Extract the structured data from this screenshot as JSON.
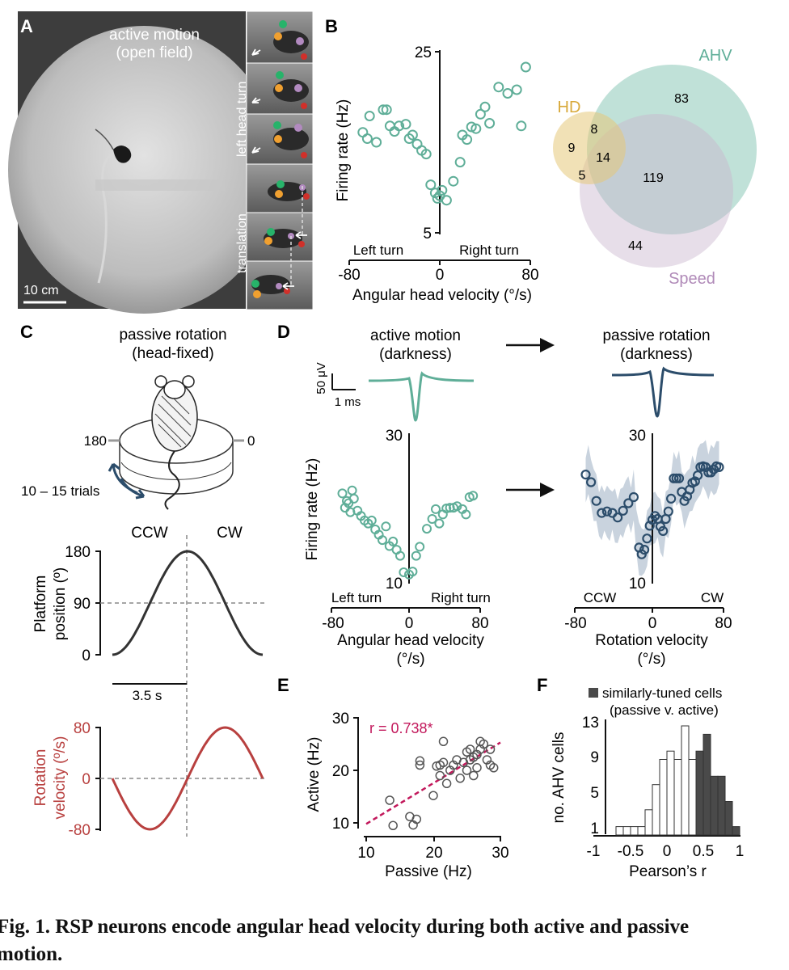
{
  "panels": {
    "A": {
      "letter": "A",
      "title_line1": "active motion",
      "title_line2": "(open field)",
      "scale_label": "10 cm",
      "side_label_1": "left head turn",
      "side_label_2": "translation"
    },
    "B": {
      "letter": "B",
      "ylabel": "Firing rate (Hz)",
      "xlabel": "Angular head velocity (°/s)",
      "left_text": "Left turn",
      "right_text": "Right turn",
      "yticks": [
        "25",
        "5"
      ],
      "xticks": [
        "-80",
        "0",
        "80"
      ],
      "venn": {
        "labels": {
          "ahv": "AHV",
          "hd": "HD",
          "speed": "Speed"
        },
        "counts": {
          "ahv_only": "83",
          "hd_only": "9",
          "hd_ahv": "8",
          "all_three": "14",
          "hd_speed": "5",
          "ahv_speed": "119",
          "speed_only": "44"
        },
        "colors": {
          "ahv": "#8cc8b8",
          "hd": "#e6c97a",
          "speed": "#c9b6cf"
        }
      }
    },
    "C": {
      "letter": "C",
      "title_line1": "passive rotation",
      "title_line2": "(head-fixed)",
      "angle_left": "180",
      "angle_right": "0",
      "trials": "10 – 15 trials",
      "ccw": "CCW",
      "cw": "CW",
      "pos_ylabel1": "Platform",
      "pos_ylabel2": "position (º)",
      "pos_yticks": [
        "180",
        "90",
        "0"
      ],
      "time_bar": "3.5 s",
      "vel_ylabel1": "Rotation",
      "vel_ylabel2": "velocity (º/s)",
      "vel_yticks": [
        "80",
        "0",
        "-80"
      ],
      "vel_color": "#b8403f"
    },
    "D": {
      "letter": "D",
      "active_title1": "active motion",
      "active_title2": "(darkness)",
      "passive_title1": "passive rotation",
      "passive_title2": "(darkness)",
      "scale_v": "50 μV",
      "scale_t": "1 ms",
      "ylabel": "Firing rate (Hz)",
      "yticks": [
        "30",
        "10"
      ],
      "xticks": [
        "-80",
        "0",
        "80"
      ],
      "left_text_active": "Left turn",
      "right_text_active": "Right turn",
      "xlabel_active1": "Angular head velocity",
      "xlabel_active2": "(°/s)",
      "left_text_passive": "CCW",
      "right_text_passive": "CW",
      "xlabel_passive1": "Rotation velocity",
      "xlabel_passive2": "(°/s)",
      "active_color": "#5fae98",
      "passive_color": "#2c4d6b"
    },
    "E": {
      "letter": "E",
      "ylabel": "Active (Hz)",
      "xlabel": "Passive (Hz)",
      "r_text": "r = 0.738*",
      "r_color": "#c2185b",
      "xticks": [
        "10",
        "20",
        "30"
      ],
      "yticks": [
        "30",
        "20",
        "10"
      ]
    },
    "F": {
      "letter": "F",
      "legend_line1": "similarly-tuned cells",
      "legend_line2": "(passive v. active)",
      "ylabel": "no. AHV cells",
      "xlabel": "Pearson’s r",
      "yticks": [
        "13",
        "9",
        "5",
        "1"
      ],
      "xticks": [
        "-1",
        "-0.5",
        "0",
        "0.5",
        "1"
      ]
    }
  },
  "caption": {
    "label": "Fig. 1.",
    "text_line1": "RSP neurons encode angular head velocity during both active and passive",
    "text_line2": "motion."
  },
  "chart_data": [
    {
      "type": "scatter",
      "panel": "B",
      "xlabel": "Angular head velocity (°/s)",
      "ylabel": "Firing rate (Hz)",
      "xlim": [
        -80,
        80
      ],
      "ylim": [
        5,
        25
      ],
      "x": [
        -68,
        -64,
        -62,
        -56,
        -50,
        -47,
        -44,
        -40,
        -36,
        -30,
        -27,
        -24,
        -20,
        -16,
        -12,
        -8,
        -4,
        -2,
        0,
        2,
        6,
        12,
        18,
        20,
        24,
        28,
        32,
        36,
        40,
        44,
        52,
        60,
        68,
        76,
        72
      ],
      "y": [
        16.1,
        15.4,
        17.9,
        15.0,
        18.6,
        18.6,
        16.8,
        16.2,
        16.8,
        17.0,
        15.4,
        15.8,
        14.8,
        14.1,
        13.7,
        10.3,
        9.4,
        8.8,
        9.1,
        9.7,
        8.6,
        10.7,
        12.8,
        15.8,
        15.3,
        16.7,
        16.5,
        18.1,
        18.9,
        17.1,
        21.1,
        20.4,
        20.8,
        23.3,
        16.8
      ]
    },
    {
      "type": "scatter",
      "panel": "D-active",
      "xlabel": "Angular head velocity (°/s)",
      "ylabel": "Firing rate (Hz)",
      "xlim": [
        -80,
        80
      ],
      "ylim": [
        10,
        30
      ],
      "x": [
        -75,
        -72,
        -70,
        -68,
        -66,
        -64,
        -62,
        -58,
        -54,
        -50,
        -46,
        -42,
        -38,
        -34,
        -30,
        -26,
        -22,
        -18,
        -14,
        -10,
        -6,
        0,
        4,
        8,
        12,
        20,
        26,
        30,
        34,
        38,
        42,
        46,
        50,
        54,
        60,
        64,
        68,
        72
      ],
      "y": [
        22.0,
        20.1,
        21.0,
        20.7,
        19.5,
        22.4,
        21.3,
        19.7,
        19.0,
        18.4,
        18.0,
        18.4,
        17.2,
        16.5,
        15.8,
        17.6,
        15.0,
        15.6,
        14.5,
        13.7,
        11.5,
        11.2,
        11.6,
        13.7,
        14.9,
        17.3,
        18.6,
        19.9,
        18.0,
        19.2,
        20.0,
        20.1,
        20.1,
        20.3,
        19.9,
        19.2,
        21.5,
        21.7
      ]
    },
    {
      "type": "line",
      "panel": "D-passive",
      "xlabel": "Rotation velocity (°/s)",
      "ylabel": "Firing rate (Hz)",
      "xlim": [
        -80,
        80
      ],
      "ylim": [
        10,
        30
      ],
      "x": [
        -75,
        -72,
        -69,
        -66,
        -63,
        -60,
        -57,
        -54,
        -51,
        -48,
        -45,
        -42,
        -39,
        -36,
        -33,
        -30,
        -27,
        -24,
        -21,
        -18,
        -15,
        -12,
        -9,
        -6,
        -3,
        0,
        3,
        6,
        9,
        12,
        15,
        18,
        21,
        24,
        27,
        30,
        33,
        36,
        39,
        42,
        45,
        48,
        51,
        54,
        57,
        60,
        63,
        66,
        69,
        72,
        75
      ],
      "y": [
        24.5,
        24.8,
        23.5,
        22.0,
        21.0,
        19.6,
        19.4,
        19.5,
        19.6,
        19.2,
        19.4,
        19.0,
        18.8,
        19.0,
        19.7,
        20.6,
        20.7,
        20.4,
        21.5,
        17.0,
        14.8,
        13.9,
        14.5,
        16.0,
        17.7,
        18.5,
        19.0,
        18.6,
        17.6,
        17.0,
        18.6,
        19.6,
        21.3,
        24.0,
        24.0,
        24.0,
        22.2,
        21.0,
        21.6,
        22.5,
        23.4,
        23.6,
        24.4,
        25.5,
        25.6,
        25.5,
        24.8,
        24.8,
        25.2,
        25.6,
        25.5
      ],
      "band": "shaded ± error"
    },
    {
      "type": "line",
      "panel": "C-position",
      "ylabel": "Platform position (º)",
      "ylim": [
        0,
        180
      ],
      "x_description_points": [
        0,
        1,
        2
      ],
      "y": [
        0,
        180,
        0
      ]
    },
    {
      "type": "line",
      "panel": "C-velocity",
      "ylabel": "Rotation velocity (º/s)",
      "ylim": [
        -80,
        80
      ],
      "y_min": -80,
      "y_max": 80
    },
    {
      "type": "scatter",
      "panel": "E",
      "xlabel": "Passive (Hz)",
      "ylabel": "Active (Hz)",
      "xlim": [
        10,
        30
      ],
      "ylim": [
        10,
        30
      ],
      "r": 0.738,
      "x": [
        13.5,
        14.0,
        16.5,
        17.0,
        17.5,
        18.0,
        18.0,
        20.0,
        20.5,
        21.0,
        21.0,
        21.5,
        21.5,
        22.0,
        22.5,
        23.0,
        23.5,
        24.0,
        24.5,
        25.0,
        25.0,
        25.5,
        25.5,
        26.0,
        26.0,
        26.5,
        26.5,
        27.0,
        27.0,
        27.5,
        28.0,
        28.5,
        28.5,
        29.0
      ],
      "y": [
        14.3,
        9.5,
        11.2,
        9.6,
        10.7,
        21.8,
        21.0,
        15.2,
        20.8,
        21.0,
        19.0,
        25.5,
        21.5,
        17.5,
        20.0,
        21.0,
        22.0,
        18.5,
        21.5,
        23.5,
        20.0,
        22.0,
        24.0,
        19.0,
        22.5,
        23.0,
        20.5,
        25.5,
        24.0,
        25.0,
        22.0,
        24.0,
        21.0,
        20.5
      ]
    },
    {
      "type": "bar",
      "panel": "F",
      "xlabel": "Pearson’s r",
      "ylabel": "no. AHV cells",
      "xlim": [
        -1,
        1
      ],
      "ylim": [
        0,
        13
      ],
      "categories": [
        -0.65,
        -0.55,
        -0.45,
        -0.35,
        -0.25,
        -0.15,
        -0.05,
        0.05,
        0.15,
        0.25,
        0.35,
        0.45,
        0.55,
        0.65,
        0.75,
        0.85,
        0.95
      ],
      "values": [
        1,
        1,
        1,
        1,
        3,
        6,
        9,
        10,
        9,
        13,
        9,
        10,
        12,
        7,
        7,
        4,
        1
      ],
      "series": [
        {
          "name": "similarly-tuned cells",
          "highlight_from": 0.4
        }
      ]
    }
  ]
}
